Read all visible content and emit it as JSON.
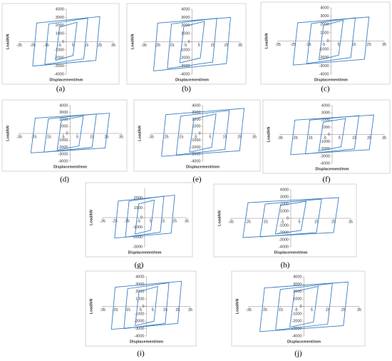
{
  "chart_data": [
    {
      "type": "line",
      "label": "(a)",
      "xlabel": "Displacement/mm",
      "ylabel": "Load/kN",
      "xlim": [
        -35,
        35
      ],
      "xticks": [
        -35,
        -25,
        -15,
        -5,
        5,
        15,
        25,
        35
      ],
      "ylim": [
        -4000,
        4000
      ],
      "yticks": [
        -4000,
        -3000,
        -2000,
        -1000,
        0,
        1000,
        2000,
        3000,
        4000
      ],
      "series": [
        {
          "color": "#3b7ec4",
          "x": [
            -8,
            -5,
            8,
            5,
            -8
          ],
          "values": [
            -2300,
            1800,
            2400,
            -1700,
            -2300
          ]
        },
        {
          "color": "#3b7ec4",
          "x": [
            -16,
            -13,
            16,
            13,
            -16
          ],
          "values": [
            -2800,
            2200,
            2900,
            -2100,
            -2800
          ]
        },
        {
          "color": "#3b7ec4",
          "x": [
            -25,
            -22,
            25,
            22,
            -25
          ],
          "values": [
            -3000,
            2300,
            3100,
            -2300,
            -3000
          ]
        }
      ]
    },
    {
      "type": "line",
      "label": "(b)",
      "xlabel": "Displacement/mm",
      "ylabel": "Load/kN",
      "xlim": [
        -35,
        35
      ],
      "xticks": [
        -35,
        -25,
        -15,
        -5,
        5,
        15,
        25,
        35
      ],
      "ylim": [
        -4000,
        4000
      ],
      "yticks": [
        -4000,
        -3000,
        -2000,
        -1000,
        0,
        1000,
        2000,
        3000,
        4000
      ],
      "series": [
        {
          "color": "#3b7ec4",
          "x": [
            -9,
            -6,
            9,
            6,
            -9
          ],
          "values": [
            -2600,
            1900,
            2500,
            -2000,
            -2600
          ]
        },
        {
          "color": "#3b7ec4",
          "x": [
            -18,
            -15,
            18,
            15,
            -18
          ],
          "values": [
            -3300,
            2200,
            2900,
            -2500,
            -3300
          ]
        },
        {
          "color": "#3b7ec4",
          "x": [
            -28,
            -25,
            28,
            25,
            -28
          ],
          "values": [
            -3600,
            2300,
            3000,
            -2700,
            -3600
          ]
        }
      ]
    },
    {
      "type": "line",
      "label": "(c)",
      "xlabel": "Displacement/mm",
      "ylabel": "Load/kN",
      "xlim": [
        -35,
        35
      ],
      "xticks": [
        -35,
        -25,
        -15,
        -5,
        5,
        15,
        25,
        35
      ],
      "ylim": [
        -4000,
        4000
      ],
      "yticks": [
        -4000,
        -3000,
        -2000,
        -1000,
        0,
        1000,
        2000,
        3000,
        4000
      ],
      "series": [
        {
          "color": "#3b7ec4",
          "x": [
            -8,
            -5,
            8,
            5,
            -8
          ],
          "values": [
            -2300,
            1900,
            2500,
            -1700,
            -2300
          ]
        },
        {
          "color": "#3b7ec4",
          "x": [
            -16,
            -13,
            16,
            13,
            -16
          ],
          "values": [
            -2700,
            2100,
            2800,
            -2000,
            -2700
          ]
        },
        {
          "color": "#3b7ec4",
          "x": [
            -25,
            -22,
            25,
            22,
            -25
          ],
          "values": [
            -2900,
            2200,
            2900,
            -2200,
            -2900
          ]
        }
      ]
    },
    {
      "type": "line",
      "label": "(d)",
      "xlabel": "Displacement/mm",
      "ylabel": "Load/kN",
      "xlim": [
        -35,
        35
      ],
      "xticks": [
        -35,
        -25,
        -15,
        -5,
        5,
        15,
        25,
        35
      ],
      "ylim": [
        -4000,
        4000
      ],
      "yticks": [
        -4000,
        -3000,
        -2000,
        -1000,
        0,
        1000,
        2000,
        3000,
        4000
      ],
      "series": [
        {
          "color": "#3b7ec4",
          "x": [
            -9,
            -6,
            9,
            6,
            -9
          ],
          "values": [
            -2400,
            1900,
            2500,
            -1800,
            -2400
          ]
        },
        {
          "color": "#3b7ec4",
          "x": [
            -18,
            -15,
            18,
            15,
            -18
          ],
          "values": [
            -2700,
            2100,
            2800,
            -2000,
            -2700
          ]
        },
        {
          "color": "#3b7ec4",
          "x": [
            -27,
            -24,
            27,
            24,
            -27
          ],
          "values": [
            -2800,
            2200,
            2900,
            -2100,
            -2800
          ]
        }
      ]
    },
    {
      "type": "line",
      "label": "(e)",
      "xlabel": "Displacement/mm",
      "ylabel": "Load/kN",
      "xlim": [
        -35,
        35
      ],
      "xticks": [
        -35,
        -25,
        -15,
        -5,
        5,
        15,
        25,
        35
      ],
      "ylim": [
        -4000,
        4000
      ],
      "yticks": [
        -4000,
        -3000,
        -2000,
        -1000,
        0,
        1000,
        2000,
        3000,
        4000
      ],
      "series": [
        {
          "color": "#3b7ec4",
          "x": [
            -9,
            -6,
            9,
            6,
            -9
          ],
          "values": [
            -2700,
            2100,
            2800,
            -2000,
            -2700
          ]
        },
        {
          "color": "#3b7ec4",
          "x": [
            -18,
            -15,
            18,
            15,
            -18
          ],
          "values": [
            -3100,
            2500,
            3300,
            -2300,
            -3100
          ]
        },
        {
          "color": "#3b7ec4",
          "x": [
            -28,
            -25,
            28,
            25,
            -28
          ],
          "values": [
            -3300,
            2700,
            3600,
            -2500,
            -3300
          ]
        }
      ]
    },
    {
      "type": "line",
      "label": "(f)",
      "xlabel": "Displacement/mm",
      "ylabel": "Load/kN",
      "xlim": [
        -35,
        35
      ],
      "xticks": [
        -35,
        -25,
        -15,
        -5,
        5,
        15,
        25,
        35
      ],
      "ylim": [
        -4000,
        4000
      ],
      "yticks": [
        -4000,
        -3000,
        -2000,
        -1000,
        0,
        1000,
        2000,
        3000,
        4000
      ],
      "series": [
        {
          "color": "#3b7ec4",
          "x": [
            -9,
            -6,
            9,
            6,
            -9
          ],
          "values": [
            -2300,
            1700,
            2200,
            -1700,
            -2300
          ]
        },
        {
          "color": "#3b7ec4",
          "x": [
            -18,
            -15,
            18,
            15,
            -18
          ],
          "values": [
            -2700,
            2000,
            2600,
            -2000,
            -2700
          ]
        },
        {
          "color": "#3b7ec4",
          "x": [
            -28,
            -25,
            28,
            25,
            -28
          ],
          "values": [
            -2800,
            2000,
            2700,
            -2100,
            -2800
          ]
        }
      ]
    },
    {
      "type": "line",
      "label": "(g)",
      "xlabel": "Displacement/mm",
      "ylabel": "Load/kN",
      "xlim": [
        -35,
        35
      ],
      "xticks": [
        -35,
        -25,
        -15,
        -5,
        5,
        15,
        25,
        35
      ],
      "ylim": [
        -3000,
        3000
      ],
      "yticks": [
        -3000,
        -2000,
        -1000,
        0,
        1000,
        2000
      ],
      "series": [
        {
          "color": "#3b7ec4",
          "x": [
            -8,
            -5,
            8,
            5,
            -8
          ],
          "values": [
            -1700,
            1400,
            1800,
            -1300,
            -1700
          ]
        },
        {
          "color": "#3b7ec4",
          "x": [
            -16,
            -13,
            16,
            13,
            -16
          ],
          "values": [
            -2000,
            1700,
            2200,
            -1500,
            -2000
          ]
        },
        {
          "color": "#3b7ec4",
          "x": [
            -25,
            -22,
            25,
            22,
            -25
          ],
          "values": [
            -2100,
            1700,
            2300,
            -1600,
            -2100
          ]
        }
      ]
    },
    {
      "type": "line",
      "label": "(h)",
      "xlabel": "Displacement/mm",
      "ylabel": "Load/kN",
      "xlim": [
        -35,
        35
      ],
      "xticks": [
        -35,
        -25,
        -15,
        -5,
        5,
        15,
        25,
        35
      ],
      "ylim": [
        -4000,
        4000
      ],
      "yticks": [
        -4000,
        -3000,
        -2000,
        -1000,
        0,
        1000,
        2000,
        3000,
        4000
      ],
      "series": [
        {
          "color": "#3b7ec4",
          "x": [
            -9,
            -6,
            9,
            6,
            -9
          ],
          "values": [
            -2200,
            1800,
            2400,
            -1700,
            -2200
          ]
        },
        {
          "color": "#3b7ec4",
          "x": [
            -18,
            -15,
            18,
            15,
            -18
          ],
          "values": [
            -2600,
            2000,
            2700,
            -2000,
            -2600
          ]
        },
        {
          "color": "#3b7ec4",
          "x": [
            -28,
            -25,
            28,
            25,
            -28
          ],
          "values": [
            -2700,
            2200,
            2900,
            -2000,
            -2700
          ]
        }
      ]
    },
    {
      "type": "line",
      "label": "(i)",
      "xlabel": "Displacement/mm",
      "ylabel": "Load/kN",
      "xlim": [
        -35,
        35
      ],
      "xticks": [
        -35,
        -25,
        -15,
        -5,
        5,
        15,
        25,
        35
      ],
      "ylim": [
        -4000,
        4000
      ],
      "yticks": [
        -4000,
        -3000,
        -2000,
        -1000,
        0,
        1000,
        2000,
        3000,
        4000
      ],
      "series": [
        {
          "color": "#3b7ec4",
          "x": [
            -9,
            -6,
            9,
            6,
            -9
          ],
          "values": [
            -2600,
            2000,
            2700,
            -2000,
            -2600
          ]
        },
        {
          "color": "#3b7ec4",
          "x": [
            -18,
            -15,
            18,
            15,
            -18
          ],
          "values": [
            -3000,
            2400,
            3200,
            -2300,
            -3000
          ]
        },
        {
          "color": "#3b7ec4",
          "x": [
            -28,
            -25,
            28,
            25,
            -28
          ],
          "values": [
            -3100,
            2600,
            3400,
            -2300,
            -3100
          ]
        }
      ]
    },
    {
      "type": "line",
      "label": "(j)",
      "xlabel": "Displacement/mm",
      "ylabel": "Load/kN",
      "xlim": [
        -35,
        35
      ],
      "xticks": [
        -35,
        -25,
        -15,
        -5,
        5,
        15,
        25,
        35
      ],
      "ylim": [
        -4000,
        4000
      ],
      "yticks": [
        -4000,
        -3000,
        -2000,
        -1000,
        0,
        1000,
        2000,
        3000,
        4000
      ],
      "series": [
        {
          "color": "#3b7ec4",
          "x": [
            -9,
            -6,
            9,
            6,
            -9
          ],
          "values": [
            -2800,
            2000,
            2700,
            -2100,
            -2800
          ]
        },
        {
          "color": "#3b7ec4",
          "x": [
            -18,
            -15,
            18,
            15,
            -18
          ],
          "values": [
            -3200,
            2300,
            3100,
            -2400,
            -3200
          ]
        },
        {
          "color": "#3b7ec4",
          "x": [
            -28,
            -25,
            28,
            25,
            -28
          ],
          "values": [
            -3400,
            2500,
            3300,
            -2600,
            -3400
          ]
        }
      ]
    }
  ]
}
